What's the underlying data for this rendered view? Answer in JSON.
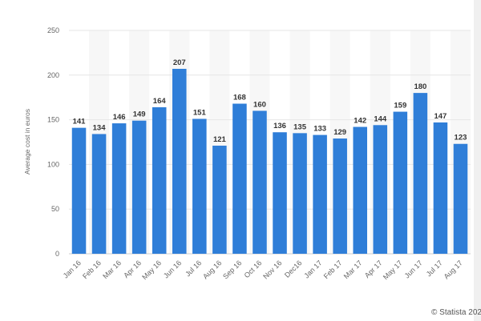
{
  "chart_data": {
    "type": "bar",
    "ylabel": "Average cost in euros",
    "ylim": [
      0,
      250
    ],
    "yticks": [
      0,
      50,
      100,
      150,
      200,
      250
    ],
    "grid": true,
    "legend": "none",
    "categories": [
      "Jan 16",
      "Feb 16",
      "Mar 16",
      "Apr 16",
      "May 16",
      "Jun 16",
      "Jul 16",
      "Aug 16",
      "Sep 16",
      "Oct 16",
      "Nov 16",
      "Dec16",
      "Jan 17",
      "Feb 17",
      "Mar 17",
      "Apr 17",
      "May 17",
      "Jun 17",
      "Jul 17",
      "Aug 17"
    ],
    "values": [
      141,
      134,
      146,
      149,
      164,
      207,
      151,
      121,
      168,
      160,
      136,
      135,
      133,
      129,
      142,
      144,
      159,
      180,
      147,
      123
    ],
    "bar_color": "#2f7ed8",
    "band_color": "#f7f7f7"
  },
  "footer": {
    "credit": "© Statista 202"
  }
}
